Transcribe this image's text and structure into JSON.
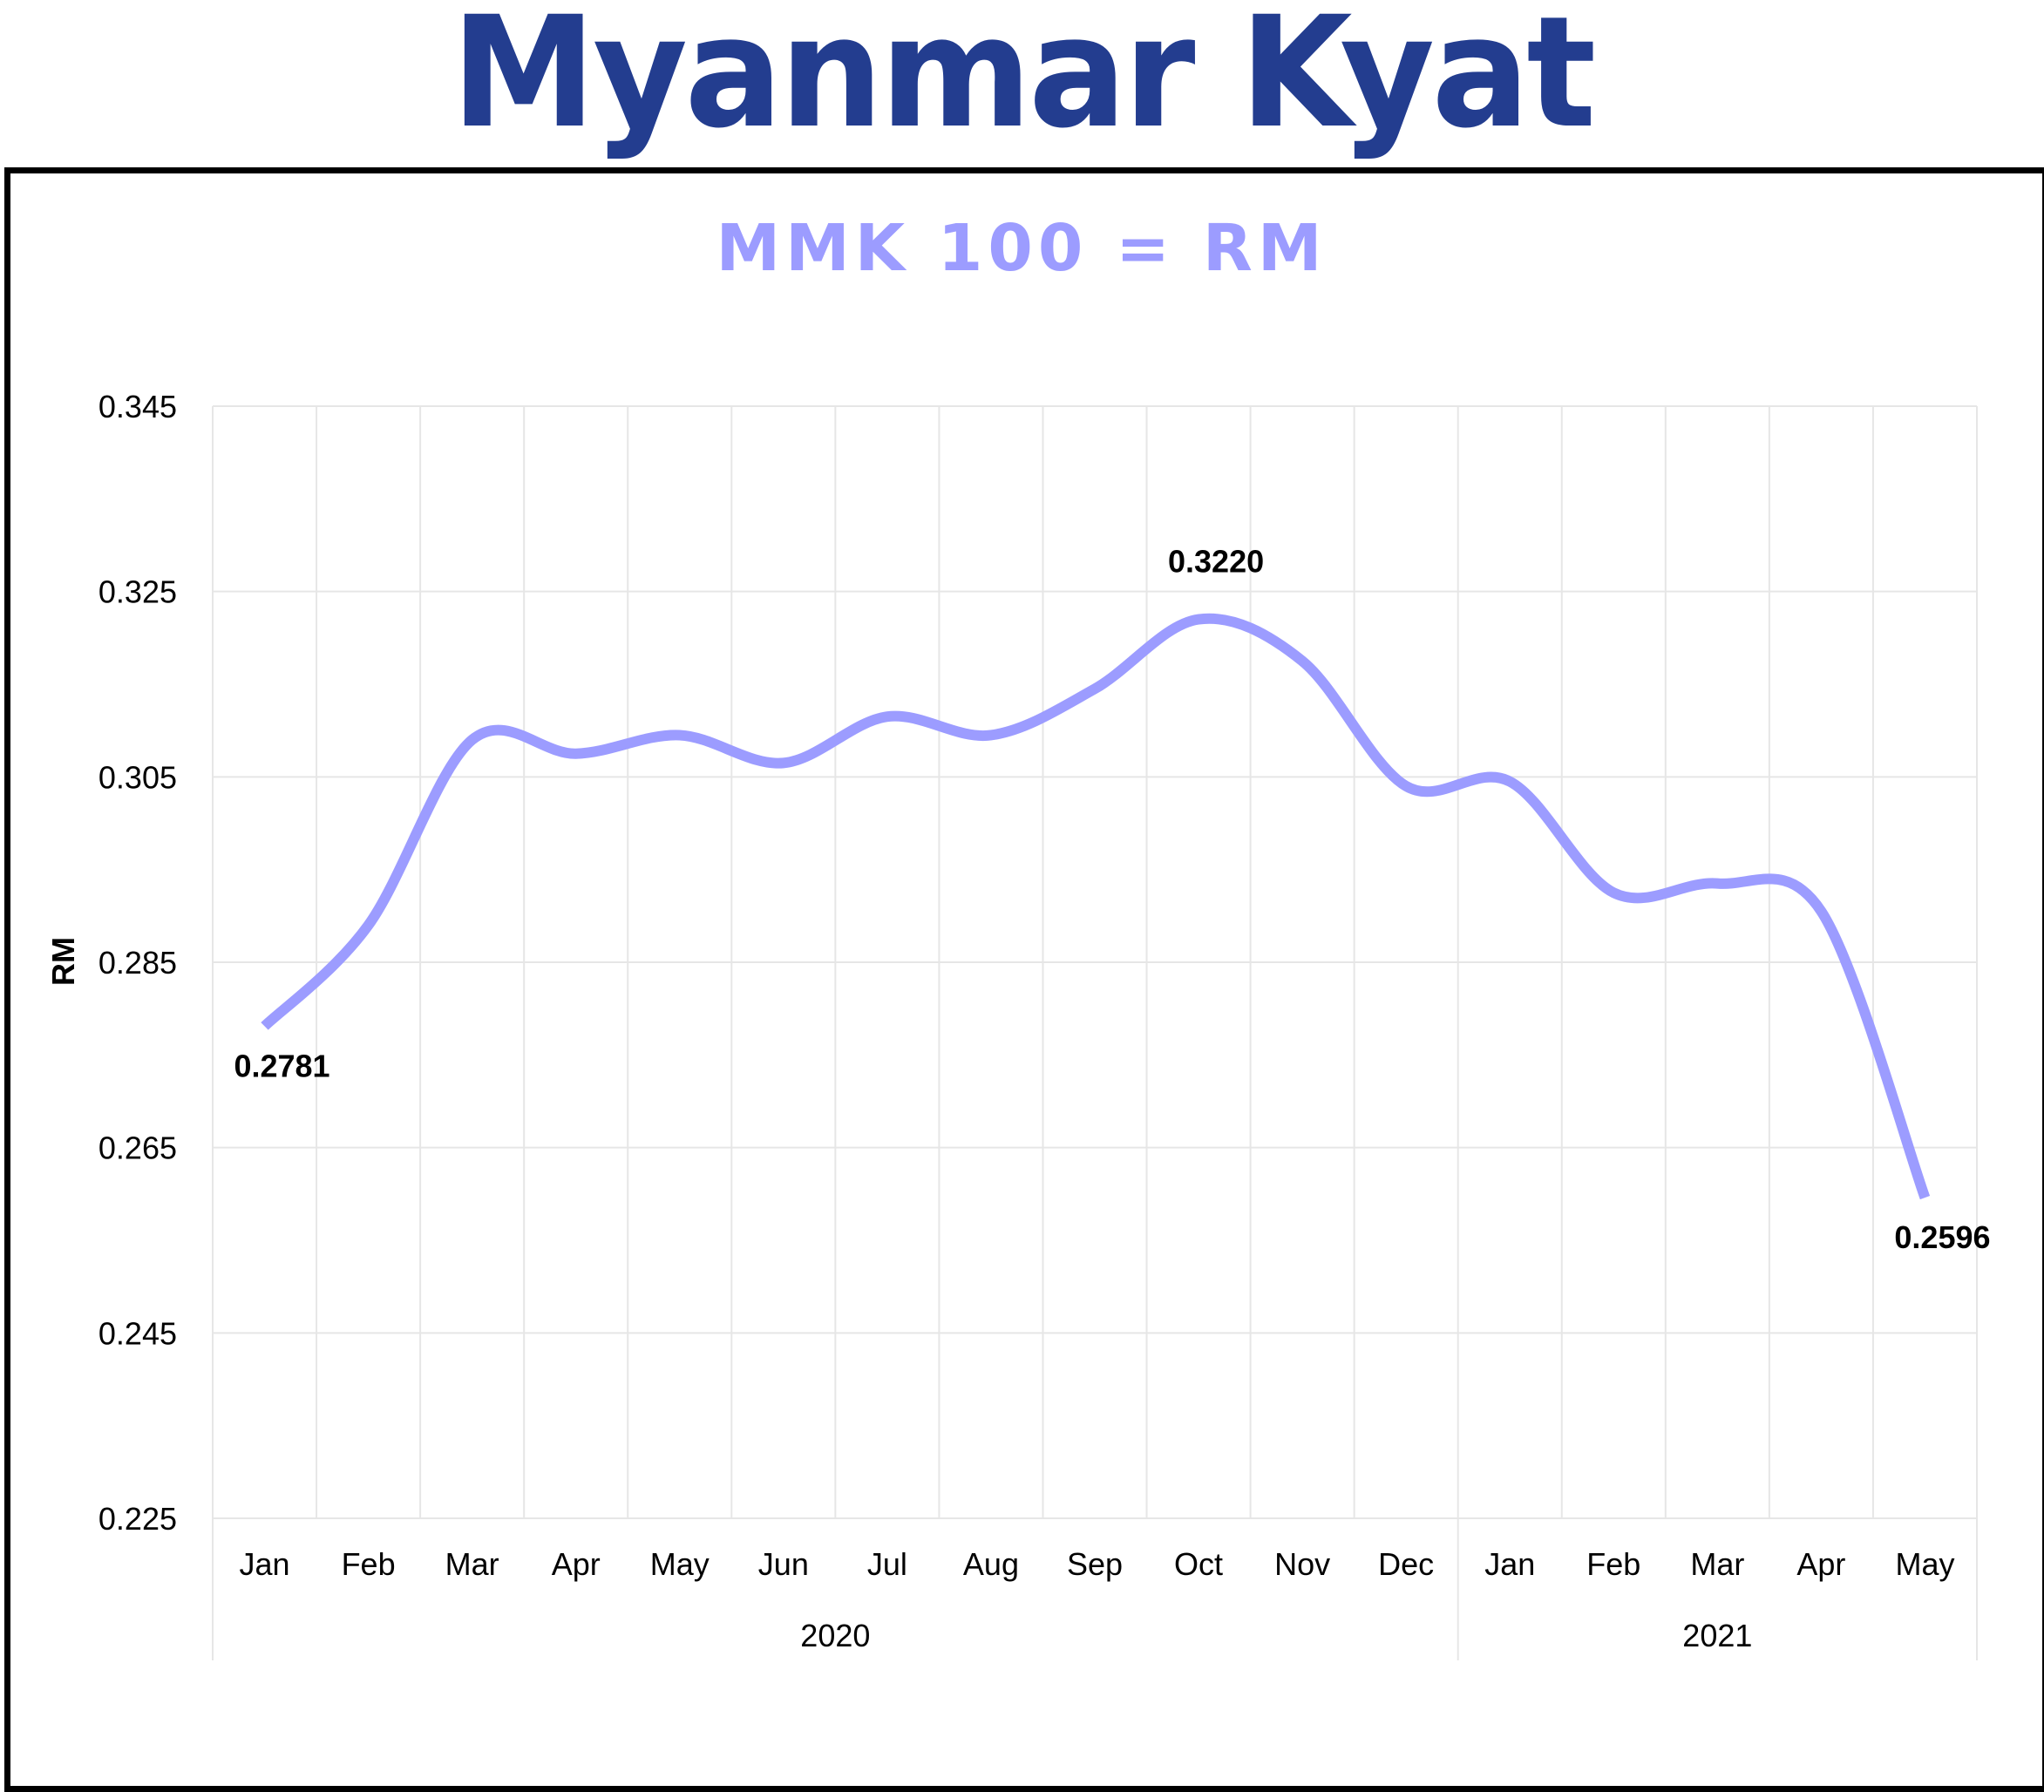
{
  "header": {
    "title": "Myanmar Kyat"
  },
  "colors": {
    "title": "#233d8f",
    "series": "#9c9cff",
    "grid": "#e6e6e6"
  },
  "chart_data": {
    "type": "line",
    "title": "MMK 100 = RM",
    "xlabel": "",
    "ylabel": "RM",
    "ylim": [
      0.225,
      0.345
    ],
    "yticks": [
      "0.345",
      "0.325",
      "0.305",
      "0.285",
      "0.265",
      "0.245",
      "0.225"
    ],
    "categories": [
      "Jan",
      "Feb",
      "Mar",
      "Apr",
      "May",
      "Jun",
      "Jul",
      "Aug",
      "Sep",
      "Oct",
      "Nov",
      "Dec",
      "Jan",
      "Feb",
      "Mar",
      "Apr",
      "May"
    ],
    "groups": [
      {
        "label": "2020",
        "span": 12
      },
      {
        "label": "2021",
        "span": 5
      }
    ],
    "series": [
      {
        "values": [
          0.2781,
          0.289,
          0.309,
          0.3075,
          0.3095,
          0.3065,
          0.3115,
          0.3095,
          0.3145,
          0.322,
          0.3175,
          0.304,
          0.3045,
          0.2925,
          0.2935,
          0.2905,
          0.2596
        ]
      }
    ],
    "data_labels": [
      {
        "index": 0,
        "text": "0.2781",
        "position": "below"
      },
      {
        "index": 9,
        "text": "0.3220",
        "position": "above"
      },
      {
        "index": 16,
        "text": "0.2596",
        "position": "below"
      }
    ],
    "grid": true,
    "legend": "none"
  }
}
